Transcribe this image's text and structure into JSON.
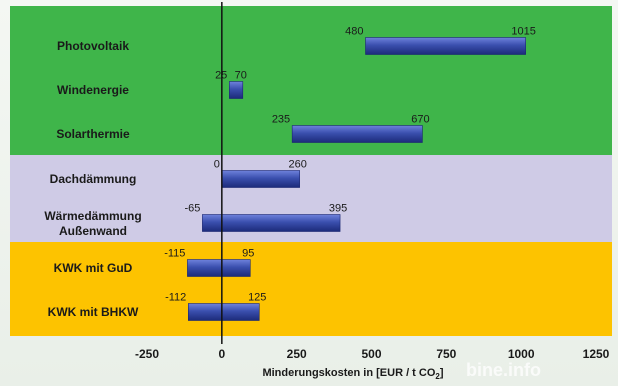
{
  "chart_data": {
    "type": "bar",
    "orientation": "horizontal",
    "subtype": "floating-range",
    "title": "",
    "categories": [
      "Photovoltaik",
      "Windenergie",
      "Solarthermie",
      "Dachdämmung",
      "Wärmedämmung\nAußenwand",
      "KWK mit GuD",
      "KWK mit BHKW"
    ],
    "series": [
      {
        "low": [
          480,
          25,
          235,
          0,
          -65,
          -115,
          -112
        ],
        "high": [
          1015,
          70,
          670,
          260,
          395,
          95,
          125
        ]
      }
    ],
    "low_labels": [
      "480",
      "25",
      "235",
      "0",
      "-65",
      "-115",
      "-112"
    ],
    "high_labels": [
      "1015",
      "70",
      "670",
      "260",
      "395",
      "95",
      "125"
    ],
    "xlim": [
      -250,
      1250
    ],
    "x_ticks": [
      "-250",
      "0",
      "250",
      "500",
      "750",
      "1000",
      "1250"
    ],
    "xlabel": "Minderungskosten in [EUR / t CO",
    "xlabel_sub": "2",
    "xlabel_end": "]",
    "groups": [
      {
        "members": [
          0,
          1,
          2
        ],
        "color": "#3fb54a"
      },
      {
        "members": [
          3,
          4
        ],
        "color": "#cfcbe6"
      },
      {
        "members": [
          5,
          6
        ],
        "color": "#fdc300"
      }
    ],
    "bar_color": "#3a4fae",
    "zero_line": true,
    "watermark": "bine.info"
  }
}
